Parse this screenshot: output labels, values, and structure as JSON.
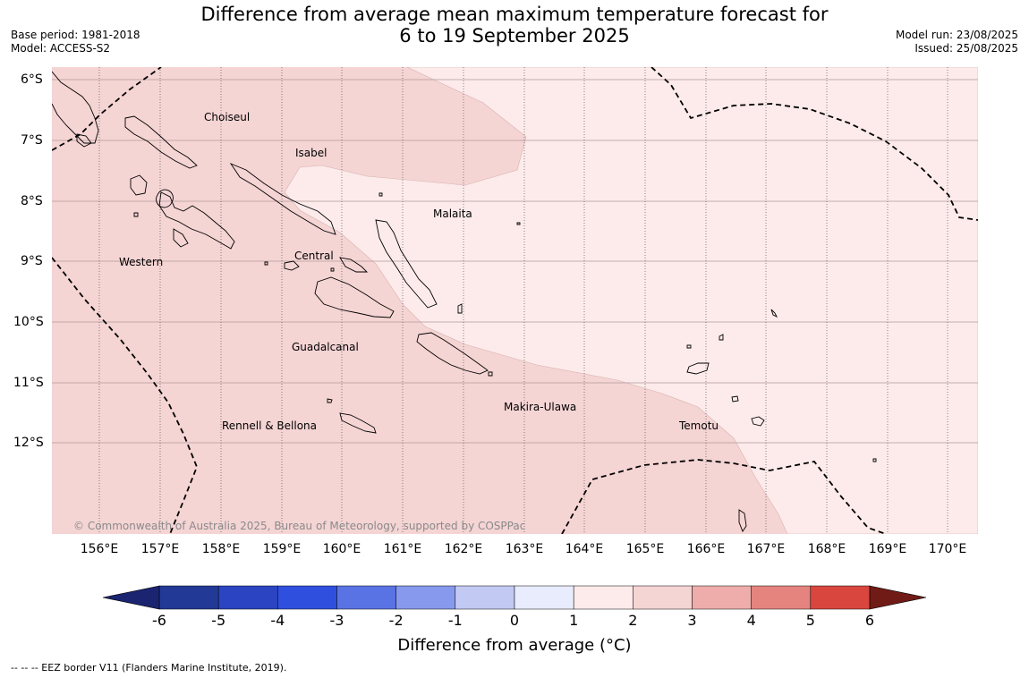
{
  "header": {
    "title_line1": "Difference from average mean maximum temperature forecast for",
    "title_line2": "6 to 19 September 2025",
    "base_period": "Base period: 1981-2018",
    "model": "Model: ACCESS-S2",
    "model_run": "Model run: 23/08/2025",
    "issued": "Issued: 25/08/2025"
  },
  "map": {
    "latitude_labels": [
      "6°S",
      "7°S",
      "8°S",
      "9°S",
      "10°S",
      "11°S",
      "12°S"
    ],
    "longitude_labels": [
      "156°E",
      "157°E",
      "158°E",
      "159°E",
      "160°E",
      "161°E",
      "162°E",
      "163°E",
      "164°E",
      "165°E",
      "166°E",
      "167°E",
      "168°E",
      "169°E",
      "170°E"
    ],
    "regions": [
      "Choiseul",
      "Isabel",
      "Malaita",
      "Western",
      "Central",
      "Guadalcanal",
      "Makira-Ulawa",
      "Rennell & Bellona",
      "Temotu"
    ],
    "fill_colors": {
      "band_1_2": "#f5d4d4",
      "band_0_1": "#fcebea"
    },
    "copyright": "© Commonwealth of Australia 2025, Bureau of Meteorology, supported by COSPPac"
  },
  "colorbar": {
    "ticks": [
      "-6",
      "-5",
      "-4",
      "-3",
      "-2",
      "-1",
      "0",
      "1",
      "2",
      "3",
      "4",
      "5",
      "6"
    ],
    "colors": [
      "#233996",
      "#2a44c2",
      "#2f50de",
      "#5a73e4",
      "#8799ec",
      "#c2caf4",
      "#e8ecfc",
      "#fcebea",
      "#f5d4d4",
      "#eeadaa",
      "#e5847f",
      "#d9463e",
      "#a8261f"
    ],
    "under_color": "#1a2470",
    "over_color": "#701b16",
    "title": "Difference from average (°C)"
  },
  "footnote": "--  --  -- EEZ border V11 (Flanders Marine Institute, 2019)."
}
